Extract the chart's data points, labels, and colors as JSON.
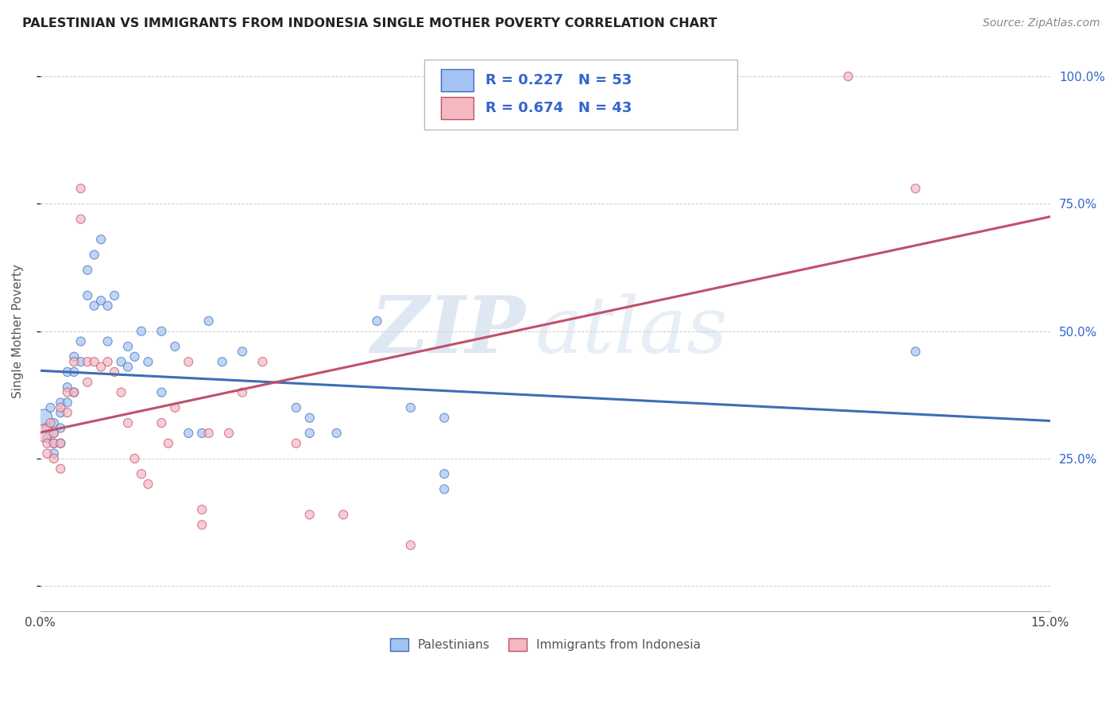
{
  "title": "PALESTINIAN VS IMMIGRANTS FROM INDONESIA SINGLE MOTHER POVERTY CORRELATION CHART",
  "source": "Source: ZipAtlas.com",
  "ylabel": "Single Mother Poverty",
  "xlim": [
    0.0,
    0.15
  ],
  "ylim": [
    -0.05,
    1.05
  ],
  "blue_color": "#a4c2f4",
  "pink_color": "#f4b8c1",
  "blue_line_color": "#3d6eb5",
  "pink_line_color": "#c0506a",
  "text_color": "#3366cc",
  "R_blue": 0.227,
  "N_blue": 53,
  "R_pink": 0.674,
  "N_pink": 43,
  "blue_points": [
    [
      0.0005,
      0.33,
      300
    ],
    [
      0.001,
      0.31,
      100
    ],
    [
      0.001,
      0.29,
      80
    ],
    [
      0.0015,
      0.35,
      80
    ],
    [
      0.002,
      0.32,
      80
    ],
    [
      0.002,
      0.3,
      80
    ],
    [
      0.002,
      0.28,
      80
    ],
    [
      0.002,
      0.26,
      80
    ],
    [
      0.003,
      0.36,
      80
    ],
    [
      0.003,
      0.34,
      80
    ],
    [
      0.003,
      0.31,
      80
    ],
    [
      0.003,
      0.28,
      80
    ],
    [
      0.004,
      0.42,
      80
    ],
    [
      0.004,
      0.39,
      80
    ],
    [
      0.004,
      0.36,
      80
    ],
    [
      0.005,
      0.45,
      80
    ],
    [
      0.005,
      0.42,
      80
    ],
    [
      0.005,
      0.38,
      80
    ],
    [
      0.006,
      0.48,
      80
    ],
    [
      0.006,
      0.44,
      80
    ],
    [
      0.007,
      0.62,
      80
    ],
    [
      0.007,
      0.57,
      80
    ],
    [
      0.008,
      0.65,
      80
    ],
    [
      0.008,
      0.55,
      80
    ],
    [
      0.009,
      0.68,
      80
    ],
    [
      0.009,
      0.56,
      80
    ],
    [
      0.01,
      0.55,
      80
    ],
    [
      0.01,
      0.48,
      80
    ],
    [
      0.011,
      0.57,
      80
    ],
    [
      0.012,
      0.44,
      80
    ],
    [
      0.013,
      0.47,
      80
    ],
    [
      0.013,
      0.43,
      80
    ],
    [
      0.014,
      0.45,
      80
    ],
    [
      0.015,
      0.5,
      80
    ],
    [
      0.016,
      0.44,
      80
    ],
    [
      0.018,
      0.5,
      80
    ],
    [
      0.018,
      0.38,
      80
    ],
    [
      0.02,
      0.47,
      80
    ],
    [
      0.022,
      0.3,
      80
    ],
    [
      0.024,
      0.3,
      80
    ],
    [
      0.025,
      0.52,
      80
    ],
    [
      0.027,
      0.44,
      80
    ],
    [
      0.03,
      0.46,
      80
    ],
    [
      0.038,
      0.35,
      80
    ],
    [
      0.04,
      0.33,
      80
    ],
    [
      0.04,
      0.3,
      80
    ],
    [
      0.044,
      0.3,
      80
    ],
    [
      0.05,
      0.52,
      80
    ],
    [
      0.055,
      0.35,
      80
    ],
    [
      0.06,
      0.33,
      80
    ],
    [
      0.06,
      0.22,
      80
    ],
    [
      0.06,
      0.19,
      80
    ],
    [
      0.13,
      0.46,
      80
    ]
  ],
  "pink_points": [
    [
      0.0005,
      0.3,
      300
    ],
    [
      0.001,
      0.28,
      80
    ],
    [
      0.001,
      0.26,
      80
    ],
    [
      0.0015,
      0.32,
      80
    ],
    [
      0.002,
      0.3,
      80
    ],
    [
      0.002,
      0.28,
      80
    ],
    [
      0.002,
      0.25,
      80
    ],
    [
      0.003,
      0.35,
      80
    ],
    [
      0.003,
      0.28,
      80
    ],
    [
      0.003,
      0.23,
      80
    ],
    [
      0.004,
      0.38,
      80
    ],
    [
      0.004,
      0.34,
      80
    ],
    [
      0.005,
      0.44,
      80
    ],
    [
      0.005,
      0.38,
      80
    ],
    [
      0.006,
      0.78,
      80
    ],
    [
      0.006,
      0.72,
      80
    ],
    [
      0.007,
      0.44,
      80
    ],
    [
      0.007,
      0.4,
      80
    ],
    [
      0.008,
      0.44,
      80
    ],
    [
      0.009,
      0.43,
      80
    ],
    [
      0.01,
      0.44,
      80
    ],
    [
      0.011,
      0.42,
      80
    ],
    [
      0.012,
      0.38,
      80
    ],
    [
      0.013,
      0.32,
      80
    ],
    [
      0.014,
      0.25,
      80
    ],
    [
      0.015,
      0.22,
      80
    ],
    [
      0.016,
      0.2,
      80
    ],
    [
      0.018,
      0.32,
      80
    ],
    [
      0.019,
      0.28,
      80
    ],
    [
      0.02,
      0.35,
      80
    ],
    [
      0.022,
      0.44,
      80
    ],
    [
      0.024,
      0.15,
      80
    ],
    [
      0.024,
      0.12,
      80
    ],
    [
      0.025,
      0.3,
      80
    ],
    [
      0.028,
      0.3,
      80
    ],
    [
      0.03,
      0.38,
      80
    ],
    [
      0.033,
      0.44,
      80
    ],
    [
      0.038,
      0.28,
      80
    ],
    [
      0.04,
      0.14,
      80
    ],
    [
      0.045,
      0.14,
      80
    ],
    [
      0.055,
      0.08,
      80
    ],
    [
      0.12,
      1.0,
      80
    ],
    [
      0.13,
      0.78,
      80
    ]
  ],
  "watermark_zip": "ZIP",
  "watermark_atlas": "atlas",
  "legend_labels": [
    "Palestinians",
    "Immigrants from Indonesia"
  ],
  "background_color": "#ffffff",
  "grid_color": "#cccccc"
}
